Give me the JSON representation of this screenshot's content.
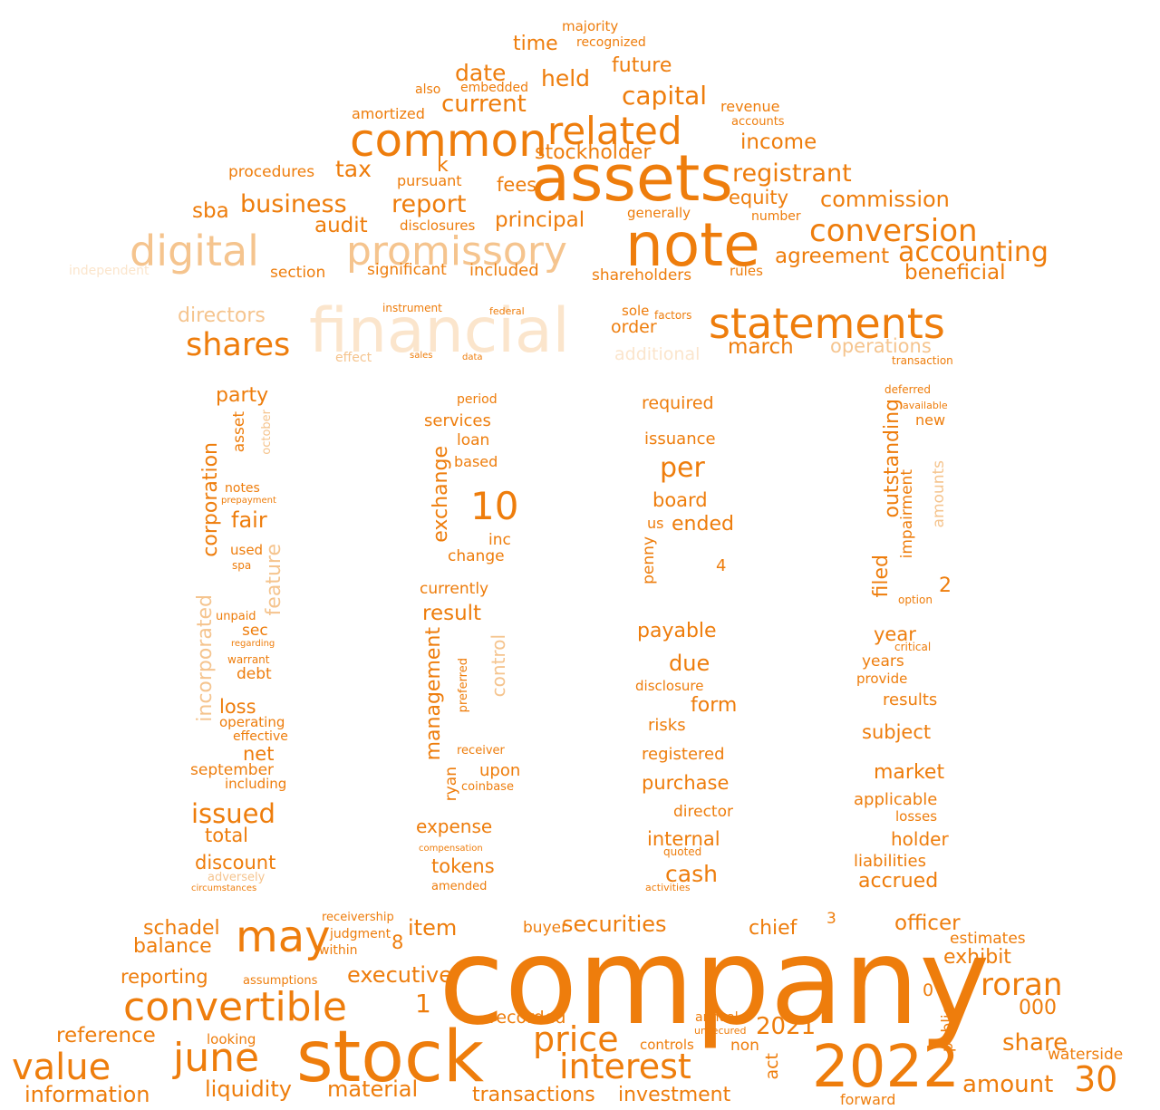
{
  "colors": {
    "background": "#ffffff",
    "primary": "#ee7d0c",
    "light": "#f5c48e",
    "faint": "#fbe5cc"
  },
  "words": {
    "company": "company",
    "stock": "stock",
    "assets": "assets",
    "note": "note",
    "financial": "financial",
    "common": "common",
    "promissory": "promissory",
    "digital": "digital",
    "statements": "statements",
    "related": "related",
    "convertible": "convertible",
    "may": "may",
    "year_2022": "2022",
    "june": "june",
    "value": "value",
    "interest": "interest",
    "price": "price",
    "conversion": "conversion",
    "accounting": "accounting",
    "shares": "shares",
    "num_10": "10",
    "roran": "roran",
    "num_30": "30",
    "capital": "capital",
    "business": "business",
    "report": "report",
    "stockholder": "stockholder",
    "registrant": "registrant",
    "agreement": "agreement",
    "beneficial": "beneficial",
    "commission": "commission",
    "income": "income",
    "equity": "equity",
    "principal": "principal",
    "date": "date",
    "current": "current",
    "held": "held",
    "future": "future",
    "time": "time",
    "tax": "tax",
    "audit": "audit",
    "sba": "sba",
    "fees": "fees",
    "k": "k",
    "revenue": "revenue",
    "accounts": "accounts",
    "amortized": "amortized",
    "embedded": "embedded",
    "recognized": "recognized",
    "majority": "majority",
    "also": "also",
    "procedures": "procedures",
    "pursuant": "pursuant",
    "disclosures": "disclosures",
    "generally": "generally",
    "number": "number",
    "shareholders": "shareholders",
    "rules": "rules",
    "section": "section",
    "significant": "significant",
    "included": "included",
    "independent": "independent",
    "directors": "directors",
    "operations": "operations",
    "additional": "additional",
    "march": "march",
    "order": "order",
    "sole": "sole",
    "factors": "factors",
    "instrument": "instrument",
    "federal": "federal",
    "transaction": "transaction",
    "effect": "effect",
    "sales": "sales",
    "data": "data",
    "party": "party",
    "asset": "asset",
    "october": "october",
    "corporation": "corporation",
    "incorporated": "incorporated",
    "fair": "fair",
    "feature": "feature",
    "notes": "notes",
    "prepayment": "prepayment",
    "used": "used",
    "spa": "spa",
    "unpaid": "unpaid",
    "sec": "sec",
    "regarding": "regarding",
    "warrant": "warrant",
    "debt": "debt",
    "loss": "loss",
    "operating": "operating",
    "effective": "effective",
    "net": "net",
    "september": "september",
    "including": "including",
    "issued": "issued",
    "total": "total",
    "discount": "discount",
    "adversely": "adversely",
    "circumstances": "circumstances",
    "period": "period",
    "services": "services",
    "loan": "loan",
    "based": "based",
    "exchange": "exchange",
    "inc": "inc",
    "change": "change",
    "currently": "currently",
    "result": "result",
    "management": "management",
    "control": "control",
    "preferred": "preferred",
    "ryan": "ryan",
    "upon": "upon",
    "receiver": "receiver",
    "coinbase": "coinbase",
    "expense": "expense",
    "tokens": "tokens",
    "amended": "amended",
    "compensation": "compensation",
    "required": "required",
    "issuance": "issuance",
    "per": "per",
    "board": "board",
    "ended": "ended",
    "us": "us",
    "penny": "penny",
    "payable": "payable",
    "due": "due",
    "disclosure": "disclosure",
    "form": "form",
    "risks": "risks",
    "registered": "registered",
    "purchase": "purchase",
    "director": "director",
    "internal": "internal",
    "cash": "cash",
    "quoted": "quoted",
    "activities": "activities",
    "deferred": "deferred",
    "available": "available",
    "outstanding": "outstanding",
    "impairment": "impairment",
    "amounts": "amounts",
    "filed": "filed",
    "new": "new",
    "year": "year",
    "years": "years",
    "provide": "provide",
    "results": "results",
    "subject": "subject",
    "market": "market",
    "applicable": "applicable",
    "losses": "losses",
    "holder": "holder",
    "liabilities": "liabilities",
    "accrued": "accrued",
    "option": "option",
    "critical": "critical",
    "schadel": "schadel",
    "balance": "balance",
    "reporting": "reporting",
    "reference": "reference",
    "information": "information",
    "liquidity": "liquidity",
    "material": "material",
    "securities": "securities",
    "item": "item",
    "executive": "executive",
    "chief": "chief",
    "officer": "officer",
    "exhibit": "exhibit",
    "estimates": "estimates",
    "amount": "amount",
    "share": "share",
    "waterside": "waterside",
    "transactions": "transactions",
    "investment": "investment",
    "recorded": "recorded",
    "buyer": "buyer",
    "judgment": "judgment",
    "within": "within",
    "receivership": "receivership",
    "assumptions": "assumptions",
    "looking": "looking",
    "controls": "controls",
    "annual": "annual",
    "unsecured": "unsecured",
    "non": "non",
    "act": "act",
    "public": "public",
    "forward": "forward",
    "year_2021": "2021",
    "num_000": "000",
    "num_1": "1",
    "num_8": "8",
    "num_3": "3",
    "num_0": "0",
    "num_2": "2",
    "num_4": "4"
  }
}
